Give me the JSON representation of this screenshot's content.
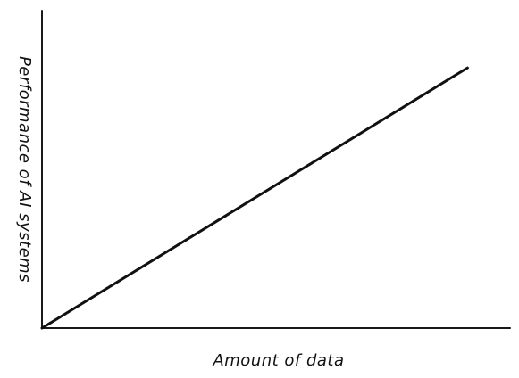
{
  "chart_data": {
    "type": "line",
    "title": "",
    "xlabel": "Amount of data",
    "ylabel": "Performance of AI systems",
    "grid": false,
    "series": [
      {
        "x": [
          0,
          1
        ],
        "y": [
          0,
          0.82
        ]
      }
    ],
    "xlim": [
      0,
      1.1
    ],
    "ylim": [
      0,
      1.0
    ]
  },
  "colors": {
    "axis": "#1a1a1a",
    "line": "#111111",
    "background": "#ffffff"
  }
}
